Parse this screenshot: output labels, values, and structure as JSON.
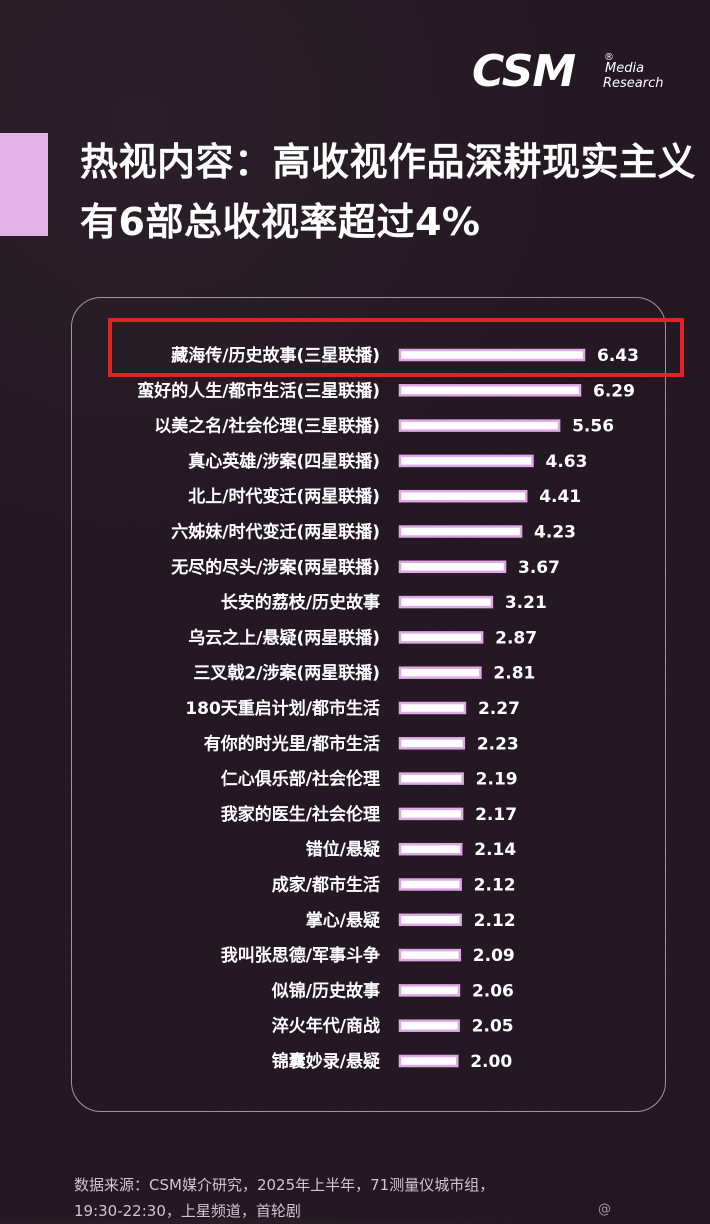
{
  "logo": {
    "brand": "CSM",
    "registered": "®",
    "line1": "Media",
    "line2": "Research"
  },
  "headline": {
    "line1": "热视内容：高收视作品深耕现实主义",
    "line2": "有6部总收视率超过4%"
  },
  "colors": {
    "background": "#231821",
    "accent": "#e3b3e6",
    "bar_fill": "#ffffff",
    "bar_outline": "#e0a8e6",
    "highlight": "#e02424"
  },
  "chart_data": {
    "type": "bar",
    "orientation": "horizontal",
    "categories": [
      "藏海传/历史故事(三星联播)",
      "蛮好的人生/都市生活(三星联播)",
      "以美之名/社会伦理(三星联播)",
      "真心英雄/涉案(四星联播)",
      "北上/时代变迁(两星联播)",
      "六姊妹/时代变迁(两星联播)",
      "无尽的尽头/涉案(两星联播)",
      "长安的荔枝/历史故事",
      "乌云之上/悬疑(两星联播)",
      "三叉戟2/涉案(两星联播)",
      "180天重启计划/都市生活",
      "有你的时光里/都市生活",
      "仁心俱乐部/社会伦理",
      "我家的医生/社会伦理",
      "错位/悬疑",
      "成家/都市生活",
      "掌心/悬疑",
      "我叫张思德/军事斗争",
      "似锦/历史故事",
      "淬火年代/商战",
      "锦囊妙录/悬疑"
    ],
    "values": [
      6.43,
      6.29,
      5.56,
      4.63,
      4.41,
      4.23,
      3.67,
      3.21,
      2.87,
      2.81,
      2.27,
      2.23,
      2.19,
      2.17,
      2.14,
      2.12,
      2.12,
      2.09,
      2.06,
      2.05,
      2.0
    ],
    "value_labels": [
      "6.43",
      "6.29",
      "5.56",
      "4.63",
      "4.41",
      "4.23",
      "3.67",
      "3.21",
      "2.87",
      "2.81",
      "2.27",
      "2.23",
      "2.19",
      "2.17",
      "2.14",
      "2.12",
      "2.12",
      "2.09",
      "2.06",
      "2.05",
      "2.00"
    ],
    "highlighted_category": "藏海传/历史故事(三星联播)",
    "xlim": [
      0,
      6.43
    ],
    "grid": false,
    "legend": "none"
  },
  "footnote": {
    "line1": "数据来源：CSM媒介研究，2025年上半年，71测量仪城市组，",
    "line2": "19:30-22:30，上星频道，首轮剧"
  },
  "watermark": "@"
}
